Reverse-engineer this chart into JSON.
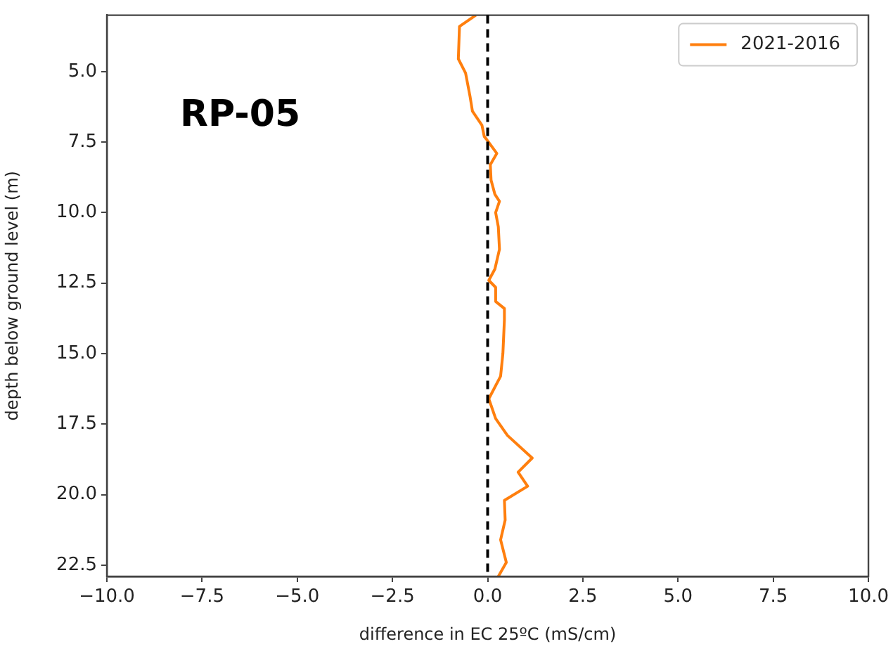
{
  "chart_data": {
    "type": "line",
    "xlabel": "difference in EC 25ºC (mS/cm)",
    "ylabel": "depth below ground level (m)",
    "annotations": [
      "RP-05"
    ],
    "xlim": [
      -10,
      10
    ],
    "ylim": [
      22.9,
      3.0
    ],
    "xticks": [
      {
        "value": -10,
        "label": "−10.0"
      },
      {
        "value": -7.5,
        "label": "−7.5"
      },
      {
        "value": -5,
        "label": "−5.0"
      },
      {
        "value": -2.5,
        "label": "−2.5"
      },
      {
        "value": 0,
        "label": "0.0"
      },
      {
        "value": 2.5,
        "label": "2.5"
      },
      {
        "value": 5,
        "label": "5.0"
      },
      {
        "value": 7.5,
        "label": "7.5"
      },
      {
        "value": 10,
        "label": "10.0"
      }
    ],
    "yticks": [
      {
        "value": 5,
        "label": "5.0"
      },
      {
        "value": 7.5,
        "label": "7.5"
      },
      {
        "value": 10,
        "label": "10.0"
      },
      {
        "value": 12.5,
        "label": "12.5"
      },
      {
        "value": 15,
        "label": "15.0"
      },
      {
        "value": 17.5,
        "label": "17.5"
      },
      {
        "value": 20,
        "label": "20.0"
      },
      {
        "value": 22.5,
        "label": "22.5"
      }
    ],
    "ref_lines": [
      {
        "axis": "x",
        "value": 0,
        "color": "#000000",
        "line_style": "dashed"
      }
    ],
    "grid": false,
    "legend": "top right",
    "series": [
      {
        "name": "2021-2016",
        "color": "#ff7f0e",
        "x": [
          -0.31,
          -0.74,
          -0.77,
          -0.58,
          -0.46,
          -0.4,
          -0.15,
          -0.09,
          -0.03,
          0.24,
          0.07,
          0.09,
          0.19,
          0.31,
          0.21,
          0.28,
          0.31,
          0.19,
          0.03,
          0.21,
          0.21,
          0.44,
          0.44,
          0.4,
          0.34,
          0.03,
          0.21,
          0.52,
          1.17,
          0.8,
          1.05,
          0.44,
          0.46,
          0.34,
          0.49,
          0.28
        ],
        "values": [
          3.0,
          3.4,
          4.55,
          5.05,
          5.9,
          6.4,
          6.9,
          7.3,
          7.4,
          7.9,
          8.3,
          8.85,
          9.35,
          9.6,
          10.0,
          10.5,
          11.3,
          12.0,
          12.4,
          12.65,
          13.15,
          13.4,
          13.8,
          15.0,
          15.8,
          16.6,
          17.3,
          17.9,
          18.7,
          19.2,
          19.7,
          20.2,
          20.9,
          21.6,
          22.4,
          22.9
        ]
      }
    ]
  }
}
